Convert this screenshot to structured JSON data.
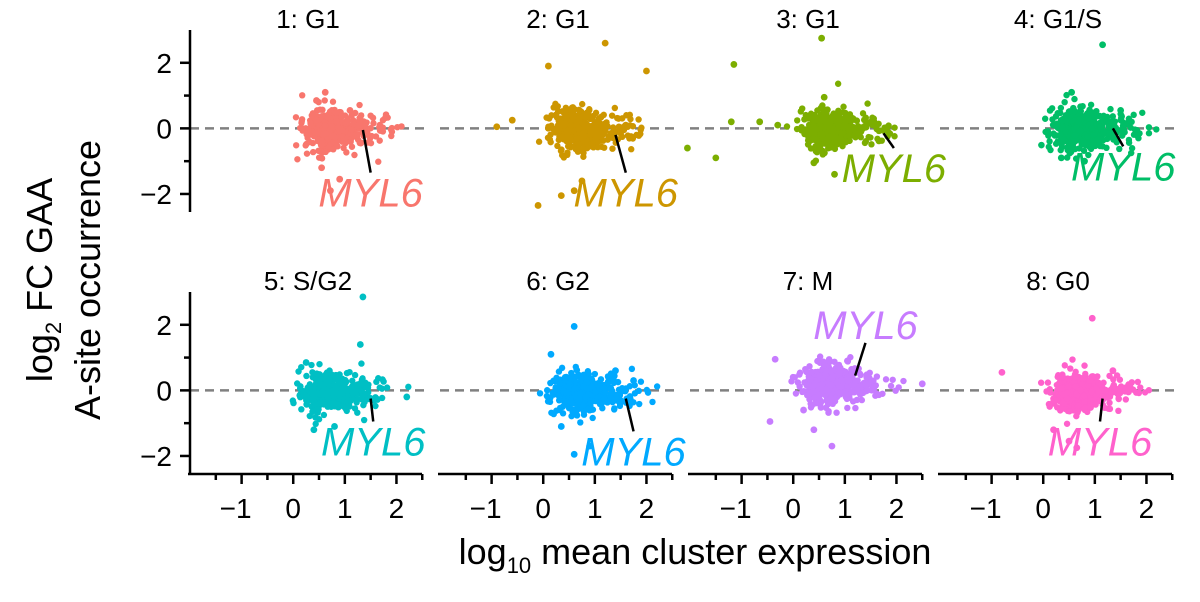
{
  "chart_data": {
    "type": "scatter",
    "ylabel": {
      "line1_base": "log",
      "line1_sub": "2",
      "line1_rest": " FC GAA",
      "line2": "A-site occurrence"
    },
    "xlabel": {
      "base": "log",
      "sub": "10",
      "rest": " mean cluster expression"
    },
    "xlim": [
      -2,
      2.65
    ],
    "ylim": [
      -2.55,
      3.0
    ],
    "x_ticks": [
      -1,
      0,
      1,
      2
    ],
    "x_tick_labels": [
      "−1",
      "0",
      "1",
      "2"
    ],
    "y_ticks": [
      -2,
      0,
      2
    ],
    "y_tick_labels": [
      "−2",
      "0",
      "2"
    ],
    "reference_line_y": 0,
    "highlight_gene": "MYL6",
    "panels": [
      {
        "title": "1: G1",
        "color": "#F8766D",
        "gene_point": [
          1.35,
          -0.05
        ],
        "label_point": [
          1.5,
          -1.35
        ],
        "outliers": [
          [
            0.62,
            1.1
          ],
          [
            0.72,
            -1.9
          ],
          [
            0.9,
            -1.55
          ],
          [
            0.45,
            0.85
          ],
          [
            1.1,
            0.55
          ],
          [
            0.55,
            -1.2
          ]
        ]
      },
      {
        "title": "2: G1",
        "color": "#CD9600",
        "gene_point": [
          1.4,
          -0.2
        ],
        "label_point": [
          1.6,
          -1.35
        ],
        "outliers": [
          [
            1.2,
            2.6
          ],
          [
            0.1,
            1.9
          ],
          [
            2.0,
            1.75
          ],
          [
            -0.1,
            -2.35
          ],
          [
            0.35,
            -2.05
          ],
          [
            -0.6,
            0.25
          ],
          [
            -0.9,
            0.05
          ],
          [
            1.6,
            0.1
          ],
          [
            0.6,
            -1.9
          ],
          [
            0.75,
            -1.6
          ]
        ]
      },
      {
        "title": "3: G1",
        "color": "#7CAE00",
        "gene_point": [
          1.75,
          -0.15
        ],
        "label_point": [
          1.95,
          -0.6
        ],
        "outliers": [
          [
            0.55,
            2.75
          ],
          [
            -1.15,
            1.95
          ],
          [
            -2.05,
            -0.6
          ],
          [
            -1.5,
            -0.9
          ],
          [
            -1.2,
            0.2
          ],
          [
            -0.65,
            0.2
          ],
          [
            0.8,
            -1.4
          ],
          [
            0.4,
            -1.05
          ],
          [
            -0.3,
            0.1
          ],
          [
            0.6,
            0.95
          ]
        ]
      },
      {
        "title": "4: G1/S",
        "color": "#00BE67",
        "gene_point": [
          1.35,
          0.0
        ],
        "label_point": [
          1.55,
          -0.55
        ],
        "outliers": [
          [
            1.15,
            2.55
          ],
          [
            0.55,
            1.1
          ],
          [
            0.35,
            -0.9
          ],
          [
            0.8,
            -1.0
          ],
          [
            1.5,
            0.55
          ]
        ]
      },
      {
        "title": "5: S/G2",
        "color": "#00BFC4",
        "gene_point": [
          1.5,
          -0.25
        ],
        "label_point": [
          1.55,
          -0.95
        ],
        "outliers": [
          [
            1.35,
            2.85
          ],
          [
            1.3,
            1.4
          ],
          [
            0.25,
            0.85
          ],
          [
            0.4,
            -1.2
          ],
          [
            0.8,
            -1.1
          ],
          [
            2.2,
            -0.2
          ]
        ]
      },
      {
        "title": "6: G2",
        "color": "#00A9FF",
        "gene_point": [
          1.6,
          -0.25
        ],
        "label_point": [
          1.75,
          -1.25
        ],
        "outliers": [
          [
            0.6,
            1.95
          ],
          [
            0.6,
            -1.95
          ],
          [
            0.9,
            -1.7
          ],
          [
            0.35,
            -1.1
          ],
          [
            1.4,
            0.6
          ],
          [
            0.15,
            1.1
          ],
          [
            1.75,
            0.3
          ]
        ]
      },
      {
        "title": "7: M",
        "color": "#C77CFF",
        "gene_point": [
          1.2,
          0.45
        ],
        "label_point": [
          1.4,
          1.45
        ],
        "outliers": [
          [
            0.75,
            -1.7
          ],
          [
            -0.35,
            0.95
          ],
          [
            -0.45,
            -0.95
          ],
          [
            0.2,
            -0.6
          ],
          [
            1.05,
            0.9
          ],
          [
            2.5,
            0.2
          ],
          [
            0.4,
            -1.2
          ]
        ]
      },
      {
        "title": "8: G0",
        "color": "#FF61CC",
        "gene_point": [
          1.15,
          -0.25
        ],
        "label_point": [
          1.1,
          -0.95
        ],
        "outliers": [
          [
            0.95,
            2.2
          ],
          [
            -0.8,
            0.55
          ],
          [
            0.5,
            -1.55
          ],
          [
            0.65,
            -1.75
          ],
          [
            0.2,
            -1.2
          ],
          [
            1.35,
            0.6
          ],
          [
            1.65,
            -0.05
          ]
        ]
      }
    ]
  }
}
